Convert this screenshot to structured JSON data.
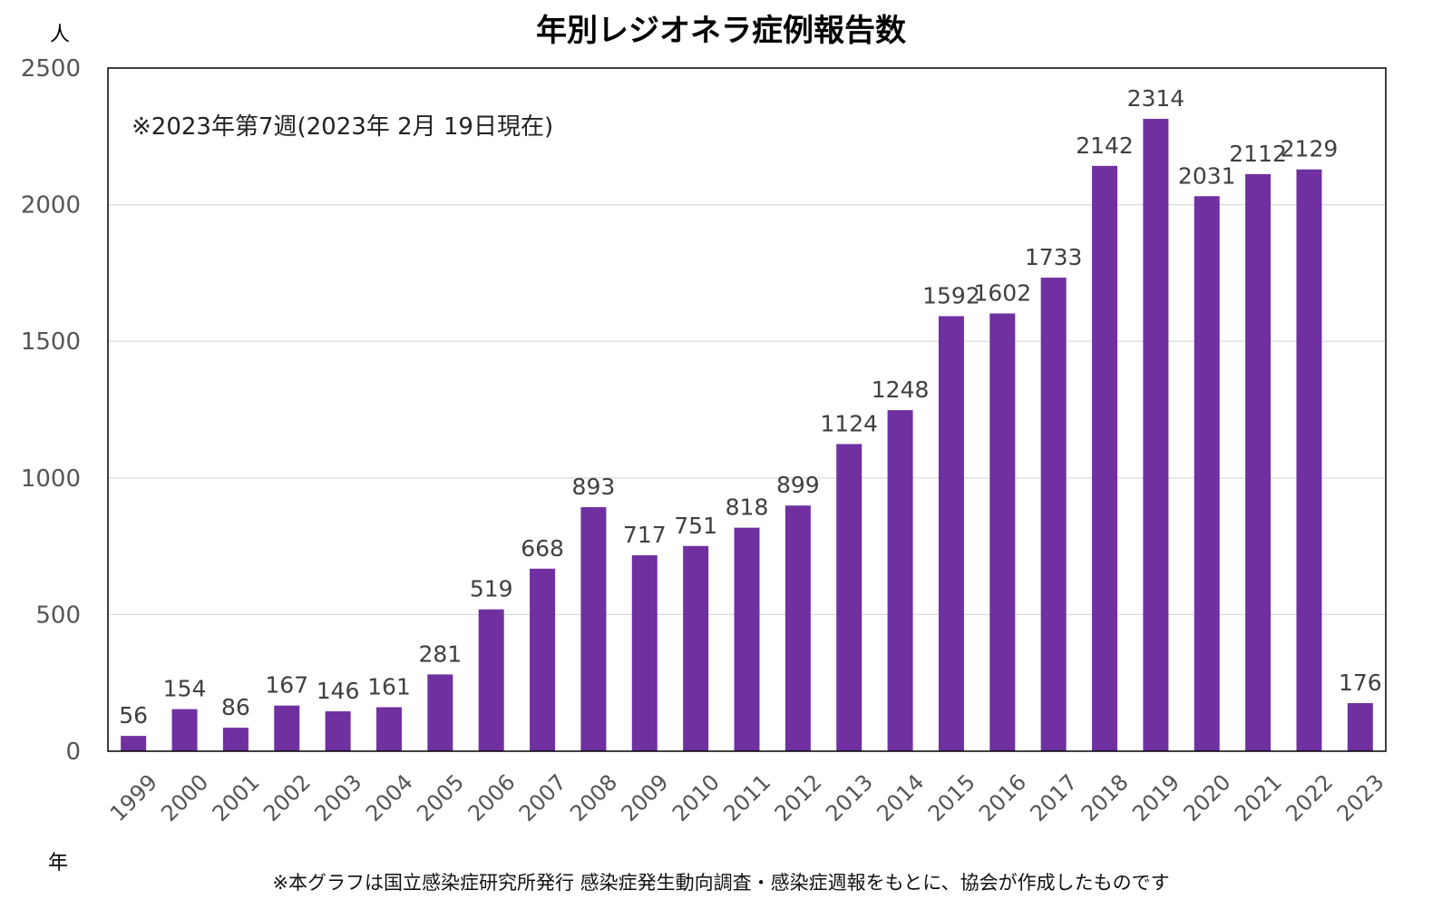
{
  "chart_data": {
    "type": "bar",
    "title": "年別レジオネラ症例報告数",
    "ylabel": "人",
    "xlabel": "年",
    "ylim": [
      0,
      2500
    ],
    "yticks": [
      0,
      500,
      1000,
      1500,
      2000,
      2500
    ],
    "grid": true,
    "bar_color": "#7030A0",
    "categories": [
      "1999",
      "2000",
      "2001",
      "2002",
      "2003",
      "2004",
      "2005",
      "2006",
      "2007",
      "2008",
      "2009",
      "2010",
      "2011",
      "2012",
      "2013",
      "2014",
      "2015",
      "2016",
      "2017",
      "2018",
      "2019",
      "2020",
      "2021",
      "2022",
      "2023"
    ],
    "values": [
      56,
      154,
      86,
      167,
      146,
      161,
      281,
      519,
      668,
      893,
      717,
      751,
      818,
      899,
      1124,
      1248,
      1592,
      1602,
      1733,
      2142,
      2314,
      2031,
      2112,
      2129,
      176
    ],
    "annotation": "※2023年第7週(2023年 2月 19日現在)",
    "footnote": "※本グラフは国立感染症研究所発行 感染症発生動向調査・感染症週報をもとに、協会が作成したものです"
  }
}
